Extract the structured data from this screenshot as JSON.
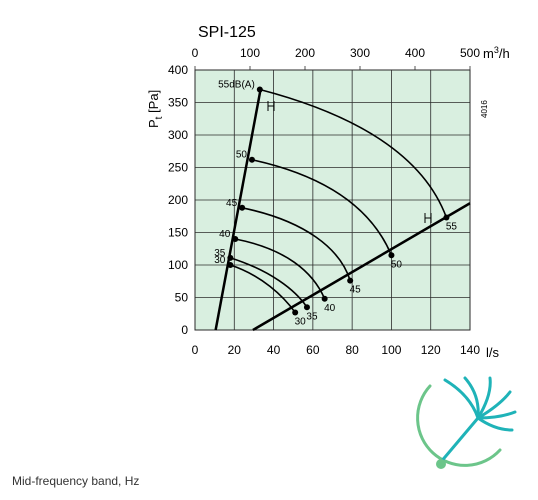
{
  "caption": "Mid-frequency band, Hz",
  "chart_data": {
    "type": "line",
    "title": "SPI-125",
    "code": "4016",
    "xlabel": "l/s",
    "x2label": "m3/h",
    "ylabel": "Pt [Pa]",
    "xlim": [
      0,
      140
    ],
    "x2lim": [
      0,
      500
    ],
    "ylim": [
      0,
      400
    ],
    "x_ticks": [
      0,
      20,
      40,
      60,
      80,
      100,
      120,
      140
    ],
    "x2_ticks": [
      0,
      100,
      200,
      300,
      400,
      500
    ],
    "y_ticks": [
      0,
      50,
      100,
      150,
      200,
      250,
      300,
      350,
      400
    ],
    "grid": true,
    "colors": {
      "plot_bg": "#d9efe0",
      "grid": "#2b2b2b",
      "curve": "#000000"
    },
    "series": [
      {
        "name": "",
        "x": [
          10.5,
          33.5
        ],
        "y": [
          0,
          372
        ]
      },
      {
        "name": "",
        "x": [
          29.5,
          140
        ],
        "y": [
          0,
          195
        ]
      }
    ],
    "noise_curves": [
      {
        "label": "30",
        "points": [
          [
            18,
            100
          ],
          [
            34,
            84
          ],
          [
            45,
            52
          ],
          [
            51,
            27
          ]
        ]
      },
      {
        "label": "35",
        "points": [
          [
            18,
            111
          ],
          [
            38,
            92
          ],
          [
            51,
            62
          ],
          [
            57,
            35
          ]
        ]
      },
      {
        "label": "40",
        "points": [
          [
            20.5,
            140
          ],
          [
            46,
            125
          ],
          [
            60,
            90
          ],
          [
            66,
            48
          ]
        ]
      },
      {
        "label": "45",
        "points": [
          [
            24,
            188
          ],
          [
            56,
            168
          ],
          [
            74,
            125
          ],
          [
            79,
            76
          ]
        ]
      },
      {
        "label": "50",
        "points": [
          [
            29,
            262
          ],
          [
            70,
            235
          ],
          [
            91,
            180
          ],
          [
            100,
            115
          ]
        ]
      },
      {
        "label": "55dB(A)",
        "points": [
          [
            33,
            370
          ],
          [
            90,
            325
          ],
          [
            118,
            255
          ],
          [
            128,
            173
          ]
        ]
      }
    ],
    "curve_label_values": [
      "30",
      "35",
      "40",
      "45",
      "50",
      "55dB(A)"
    ],
    "end_labels": [
      "30",
      "35",
      "40",
      "45",
      "50",
      "55"
    ]
  }
}
